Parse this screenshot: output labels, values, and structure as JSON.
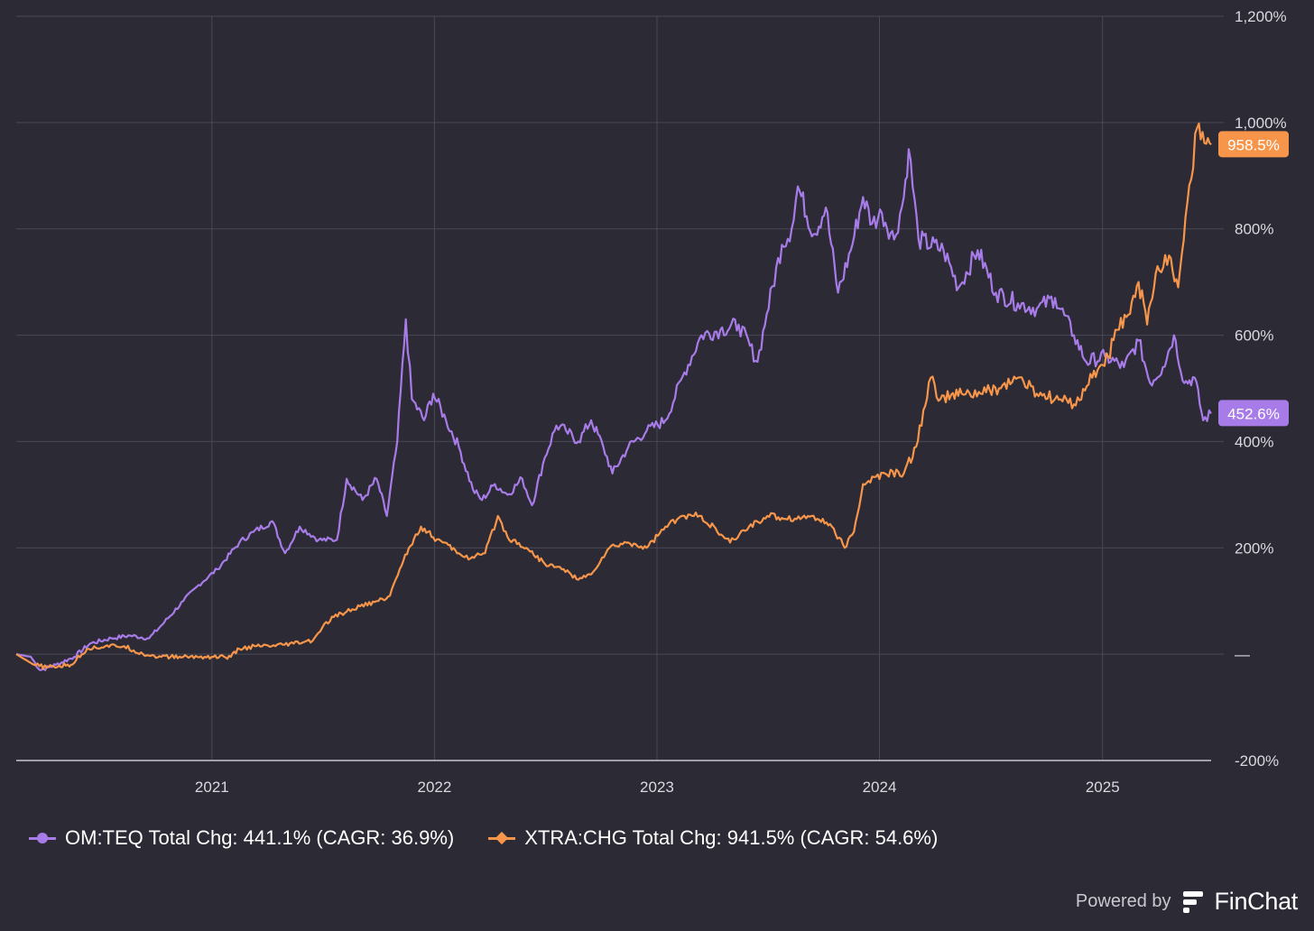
{
  "chart_data": {
    "type": "line",
    "x_axis": {
      "tick_labels": [
        "2021",
        "2022",
        "2023",
        "2024",
        "2025"
      ]
    },
    "y_axis": {
      "tick_labels": [
        "1,200%",
        "1,000%",
        "800%",
        "600%",
        "400%",
        "200%",
        "—",
        "-200%"
      ],
      "tick_values": [
        1200,
        1000,
        800,
        600,
        400,
        200,
        0,
        -200
      ],
      "ylim": [
        -200,
        1200
      ],
      "position": "right",
      "unit": "%"
    },
    "grid": true,
    "series": [
      {
        "name": "OM:TEQ",
        "color": "#a87ce8",
        "marker": "circle",
        "end_label": "452.6%",
        "points": [
          [
            "2020-02-15",
            0
          ],
          [
            "2020-03-10",
            -5
          ],
          [
            "2020-03-25",
            -30
          ],
          [
            "2020-04-20",
            -20
          ],
          [
            "2020-05-20",
            -5
          ],
          [
            "2020-06-15",
            20
          ],
          [
            "2020-07-20",
            30
          ],
          [
            "2020-08-20",
            35
          ],
          [
            "2020-09-20",
            30
          ],
          [
            "2020-10-15",
            60
          ],
          [
            "2020-11-15",
            100
          ],
          [
            "2020-12-10",
            130
          ],
          [
            "2021-01-10",
            160
          ],
          [
            "2021-02-15",
            210
          ],
          [
            "2021-03-10",
            230
          ],
          [
            "2021-04-10",
            250
          ],
          [
            "2021-05-01",
            190
          ],
          [
            "2021-05-25",
            240
          ],
          [
            "2021-06-25",
            215
          ],
          [
            "2021-07-25",
            215
          ],
          [
            "2021-08-10",
            330
          ],
          [
            "2021-09-05",
            290
          ],
          [
            "2021-09-28",
            330
          ],
          [
            "2021-10-15",
            260
          ],
          [
            "2021-11-01",
            400
          ],
          [
            "2021-11-15",
            630
          ],
          [
            "2021-11-25",
            480
          ],
          [
            "2021-12-15",
            440
          ],
          [
            "2021-12-30",
            490
          ],
          [
            "2022-01-20",
            440
          ],
          [
            "2022-02-10",
            390
          ],
          [
            "2022-03-05",
            310
          ],
          [
            "2022-03-20",
            290
          ],
          [
            "2022-04-10",
            320
          ],
          [
            "2022-05-01",
            300
          ],
          [
            "2022-05-25",
            330
          ],
          [
            "2022-06-10",
            280
          ],
          [
            "2022-07-01",
            370
          ],
          [
            "2022-07-20",
            430
          ],
          [
            "2022-08-05",
            420
          ],
          [
            "2022-08-25",
            400
          ],
          [
            "2022-09-15",
            440
          ],
          [
            "2022-10-05",
            390
          ],
          [
            "2022-10-20",
            340
          ],
          [
            "2022-11-15",
            390
          ],
          [
            "2022-12-15",
            420
          ],
          [
            "2023-01-15",
            440
          ],
          [
            "2023-02-15",
            530
          ],
          [
            "2023-03-15",
            600
          ],
          [
            "2023-04-15",
            610
          ],
          [
            "2023-05-15",
            620
          ],
          [
            "2023-06-15",
            550
          ],
          [
            "2023-06-30",
            640
          ],
          [
            "2023-07-25",
            770
          ],
          [
            "2023-08-10",
            800
          ],
          [
            "2023-08-20",
            880
          ],
          [
            "2023-09-15",
            790
          ],
          [
            "2023-10-05",
            840
          ],
          [
            "2023-10-25",
            680
          ],
          [
            "2023-11-15",
            760
          ],
          [
            "2023-12-05",
            860
          ],
          [
            "2023-12-20",
            810
          ],
          [
            "2024-01-05",
            830
          ],
          [
            "2024-01-25",
            780
          ],
          [
            "2024-02-10",
            860
          ],
          [
            "2024-02-18",
            950
          ],
          [
            "2024-03-05",
            780
          ],
          [
            "2024-04-15",
            760
          ],
          [
            "2024-05-10",
            690
          ],
          [
            "2024-06-10",
            760
          ],
          [
            "2024-07-10",
            680
          ],
          [
            "2024-08-15",
            660
          ],
          [
            "2024-09-15",
            650
          ],
          [
            "2024-10-15",
            670
          ],
          [
            "2024-11-15",
            600
          ],
          [
            "2024-12-05",
            550
          ],
          [
            "2025-01-05",
            560
          ],
          [
            "2025-02-05",
            540
          ],
          [
            "2025-03-01",
            590
          ],
          [
            "2025-03-20",
            510
          ],
          [
            "2025-04-10",
            540
          ],
          [
            "2025-04-28",
            600
          ],
          [
            "2025-05-15",
            510
          ],
          [
            "2025-06-01",
            520
          ],
          [
            "2025-06-15",
            440
          ],
          [
            "2025-06-28",
            452.6
          ]
        ]
      },
      {
        "name": "XTRA:CHG",
        "color": "#f7964a",
        "marker": "diamond",
        "end_label": "958.5%",
        "points": [
          [
            "2020-02-15",
            0
          ],
          [
            "2020-03-15",
            -20
          ],
          [
            "2020-04-05",
            -25
          ],
          [
            "2020-05-15",
            -20
          ],
          [
            "2020-06-10",
            10
          ],
          [
            "2020-07-10",
            15
          ],
          [
            "2020-08-10",
            15
          ],
          [
            "2020-09-10",
            0
          ],
          [
            "2020-10-10",
            -5
          ],
          [
            "2020-11-15",
            -5
          ],
          [
            "2020-12-20",
            -5
          ],
          [
            "2021-02-01",
            -5
          ],
          [
            "2021-02-15",
            10
          ],
          [
            "2021-03-15",
            15
          ],
          [
            "2021-04-15",
            15
          ],
          [
            "2021-05-15",
            20
          ],
          [
            "2021-06-15",
            25
          ],
          [
            "2021-07-01",
            50
          ],
          [
            "2021-07-20",
            70
          ],
          [
            "2021-08-10",
            80
          ],
          [
            "2021-09-01",
            90
          ],
          [
            "2021-10-01",
            100
          ],
          [
            "2021-10-20",
            110
          ],
          [
            "2021-11-05",
            160
          ],
          [
            "2021-11-20",
            200
          ],
          [
            "2021-12-10",
            240
          ],
          [
            "2021-12-30",
            220
          ],
          [
            "2022-01-15",
            210
          ],
          [
            "2022-02-10",
            190
          ],
          [
            "2022-03-01",
            180
          ],
          [
            "2022-03-25",
            190
          ],
          [
            "2022-04-15",
            260
          ],
          [
            "2022-05-01",
            220
          ],
          [
            "2022-06-01",
            200
          ],
          [
            "2022-07-01",
            170
          ],
          [
            "2022-08-01",
            160
          ],
          [
            "2022-08-25",
            140
          ],
          [
            "2022-09-15",
            150
          ],
          [
            "2022-10-15",
            200
          ],
          [
            "2022-11-15",
            210
          ],
          [
            "2022-12-15",
            200
          ],
          [
            "2023-01-15",
            240
          ],
          [
            "2023-02-15",
            260
          ],
          [
            "2023-03-15",
            260
          ],
          [
            "2023-04-10",
            230
          ],
          [
            "2023-05-01",
            210
          ],
          [
            "2023-06-01",
            240
          ],
          [
            "2023-07-01",
            260
          ],
          [
            "2023-08-15",
            255
          ],
          [
            "2023-09-15",
            260
          ],
          [
            "2023-10-15",
            240
          ],
          [
            "2023-11-05",
            200
          ],
          [
            "2023-11-20",
            230
          ],
          [
            "2023-12-05",
            320
          ],
          [
            "2024-01-10",
            340
          ],
          [
            "2024-02-10",
            340
          ],
          [
            "2024-03-01",
            390
          ],
          [
            "2024-03-25",
            520
          ],
          [
            "2024-04-10",
            480
          ],
          [
            "2024-05-15",
            490
          ],
          [
            "2024-06-15",
            490
          ],
          [
            "2024-07-15",
            500
          ],
          [
            "2024-08-15",
            520
          ],
          [
            "2024-09-15",
            490
          ],
          [
            "2024-10-15",
            480
          ],
          [
            "2024-11-15",
            470
          ],
          [
            "2024-12-15",
            520
          ],
          [
            "2025-01-10",
            560
          ],
          [
            "2025-01-25",
            610
          ],
          [
            "2025-02-15",
            640
          ],
          [
            "2025-03-01",
            700
          ],
          [
            "2025-03-15",
            620
          ],
          [
            "2025-04-01",
            730
          ],
          [
            "2025-04-20",
            750
          ],
          [
            "2025-05-05",
            690
          ],
          [
            "2025-05-20",
            850
          ],
          [
            "2025-06-05",
            990
          ],
          [
            "2025-06-20",
            960
          ],
          [
            "2025-06-28",
            958.5
          ]
        ]
      }
    ],
    "legend": {
      "placement": "bottom-left",
      "entries": [
        {
          "series": "OM:TEQ",
          "label": "OM:TEQ Total Chg: 441.1% (CAGR: 36.9%)"
        },
        {
          "series": "XTRA:CHG",
          "label": "XTRA:CHG Total Chg: 941.5% (CAGR: 54.6%)"
        }
      ]
    }
  },
  "branding": {
    "powered_by": "Powered by",
    "name": "FinChat"
  },
  "colors": {
    "background": "#2b2a35",
    "grid": "#4a4956",
    "purple": "#a87ce8",
    "orange": "#f7964a"
  }
}
